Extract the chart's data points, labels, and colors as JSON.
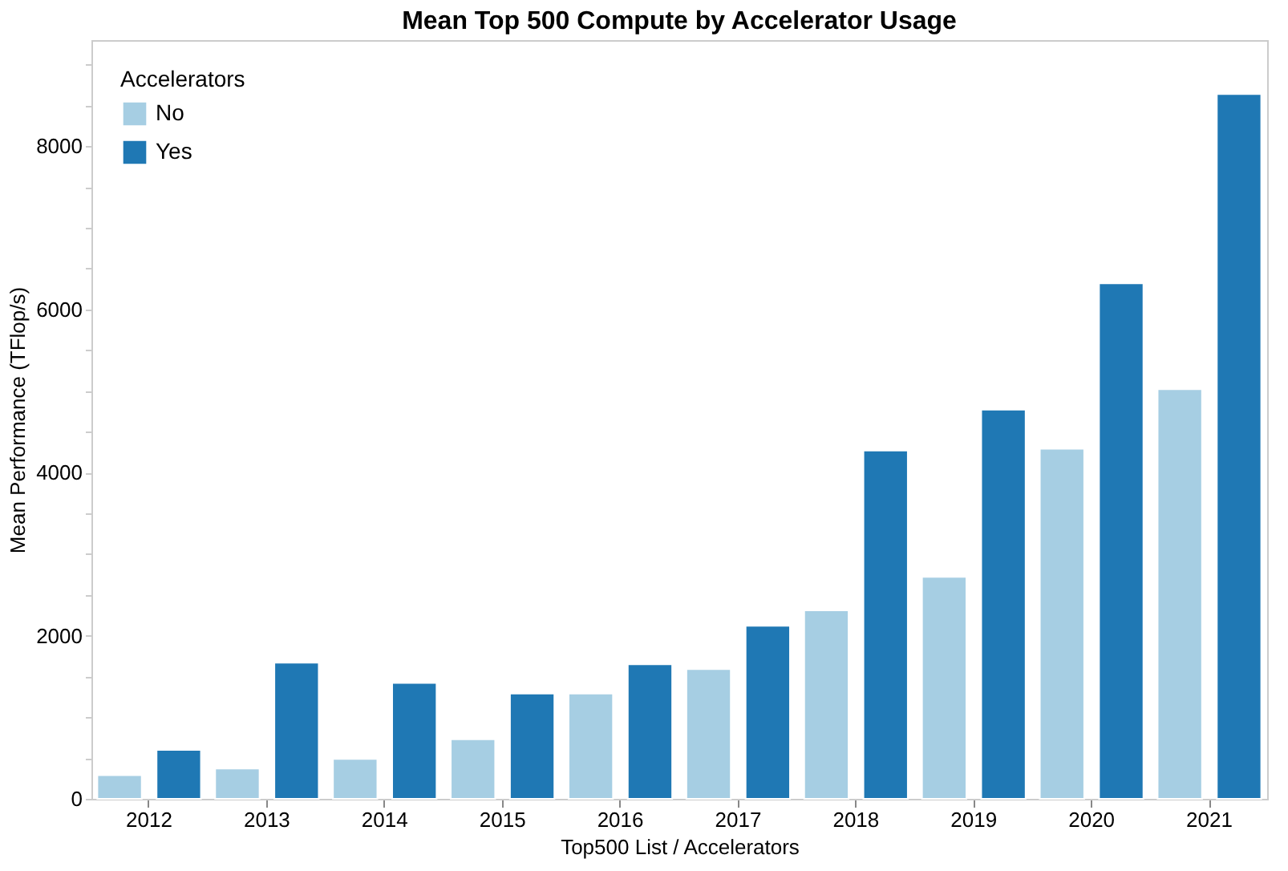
{
  "chart_data": {
    "type": "bar",
    "title": "Mean Top 500 Compute by Accelerator Usage",
    "xlabel": "Top500 List / Accelerators",
    "ylabel": "Mean Performance (TFlop/s)",
    "legend_title": "Accelerators",
    "legend": "top left",
    "grid": false,
    "categories": [
      "2012",
      "2013",
      "2014",
      "2015",
      "2016",
      "2017",
      "2018",
      "2019",
      "2020",
      "2021"
    ],
    "series": [
      {
        "name": "No",
        "color": "#a6cee3",
        "values": [
          290,
          370,
          490,
          730,
          1290,
          1590,
          2310,
          2720,
          4290,
          5020
        ]
      },
      {
        "name": "Yes",
        "color": "#1f78b4",
        "values": [
          600,
          1670,
          1420,
          1290,
          1650,
          2120,
          4270,
          4770,
          6320,
          8640
        ]
      }
    ],
    "ylim": [
      0,
      9300
    ],
    "yticks": [
      0,
      {
        "value": 500,
        "label": null
      },
      {
        "value": 1000,
        "label": null
      },
      {
        "value": 1500,
        "label": null
      },
      2000,
      {
        "value": 2500,
        "label": null
      },
      {
        "value": 3000,
        "label": null
      },
      {
        "value": 3500,
        "label": null
      },
      4000,
      {
        "value": 4500,
        "label": null
      },
      {
        "value": 5000,
        "label": null
      },
      {
        "value": 5500,
        "label": null
      },
      6000,
      {
        "value": 6500,
        "label": null
      },
      {
        "value": 7000,
        "label": null
      },
      {
        "value": 7500,
        "label": null
      },
      8000,
      {
        "value": 8500,
        "label": null
      },
      {
        "value": 9000,
        "label": null
      }
    ]
  }
}
